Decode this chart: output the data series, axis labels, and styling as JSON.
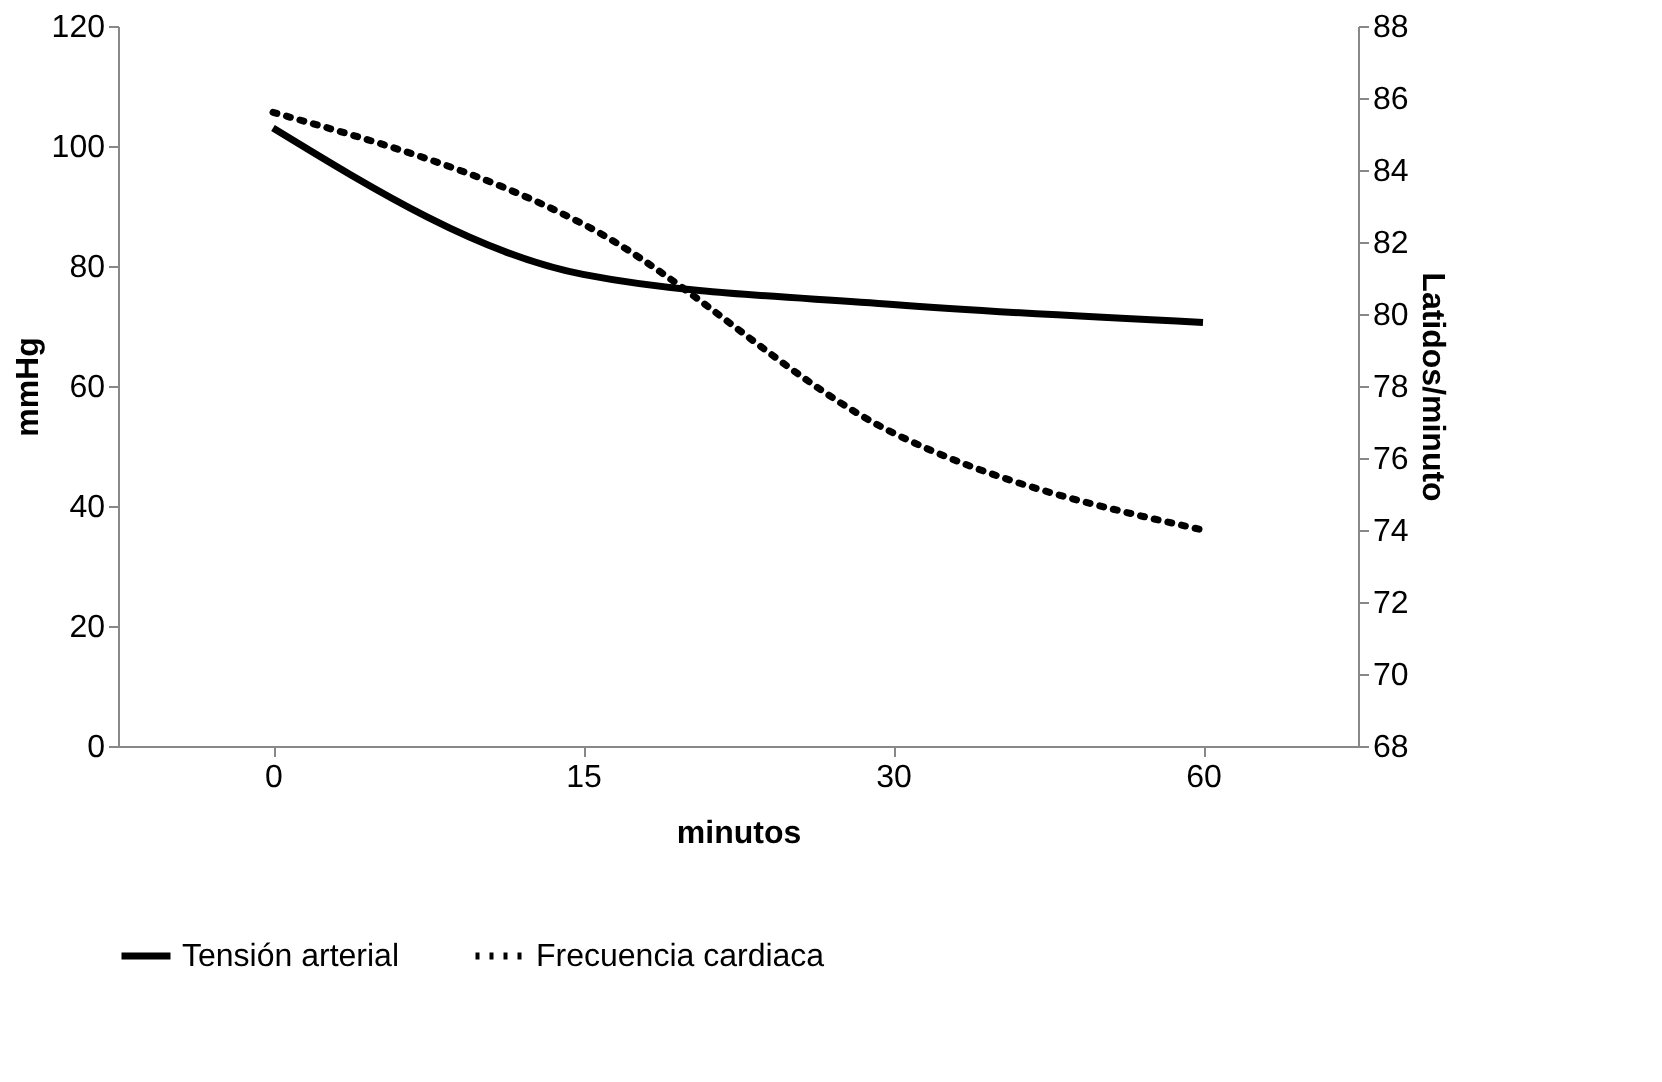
{
  "chart_data": {
    "type": "line",
    "categories": [
      "0",
      "15",
      "30",
      "60"
    ],
    "xlabel": "minutos",
    "ylabel": "mmHg",
    "y2label": "Latidos/minuto",
    "ylim": [
      0,
      120
    ],
    "yticks": [
      0,
      20,
      40,
      60,
      80,
      100,
      120
    ],
    "y2lim": [
      68,
      88
    ],
    "y2ticks": [
      68,
      70,
      72,
      74,
      76,
      78,
      80,
      82,
      84,
      86,
      88
    ],
    "legend": "bottom",
    "grid": false,
    "series": [
      {
        "name": "Tensión arterial",
        "color": "#000000",
        "line_style": "solid",
        "values": [
          103,
          78.6,
          73.6,
          70.6
        ]
      },
      {
        "name": "Frecuencia cardiaca",
        "color": "#000000",
        "line_style": "dotted",
        "axis": "y2",
        "values": [
          85.6,
          82.5,
          76.7,
          74.0
        ]
      }
    ]
  }
}
